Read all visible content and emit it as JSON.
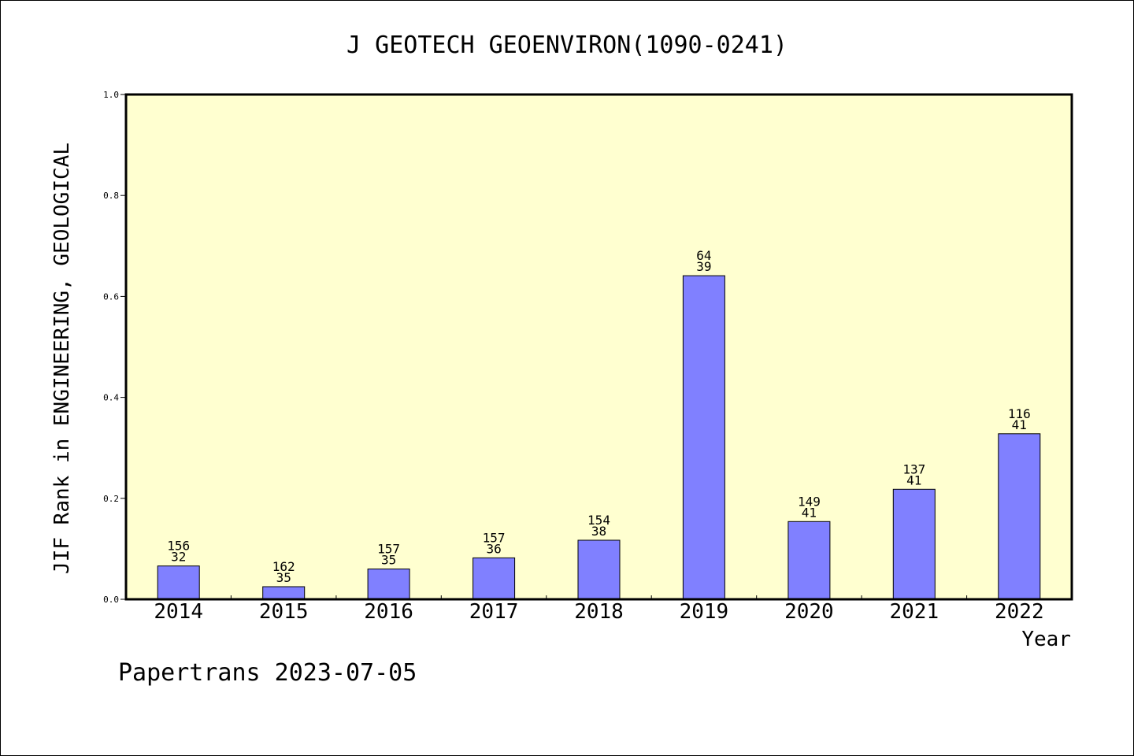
{
  "chart_data": {
    "type": "bar",
    "title": "J GEOTECH GEOENVIRON(1090-0241)",
    "xlabel": "Year",
    "ylabel": "JIF Rank in ENGINEERING, GEOLOGICAL",
    "categories": [
      "2014",
      "2015",
      "2016",
      "2017",
      "2018",
      "2019",
      "2020",
      "2021",
      "2022"
    ],
    "values": [
      0.066,
      0.025,
      0.06,
      0.082,
      0.117,
      0.641,
      0.154,
      0.218,
      0.328
    ],
    "ranks": [
      "156",
      "162",
      "157",
      "157",
      "154",
      "64",
      "149",
      "137",
      "116"
    ],
    "totals": [
      "32",
      "35",
      "35",
      "36",
      "38",
      "39",
      "41",
      "41",
      "41"
    ],
    "ylim": [
      0,
      1.0
    ],
    "yticks": [
      "0.0",
      "0.2",
      "0.4",
      "0.6",
      "0.8",
      "1.0"
    ],
    "grid": false,
    "bar_color": "#8080ff",
    "plot_background": "#ffffd0"
  },
  "footer": {
    "text": "Papertrans 2023-07-05"
  }
}
